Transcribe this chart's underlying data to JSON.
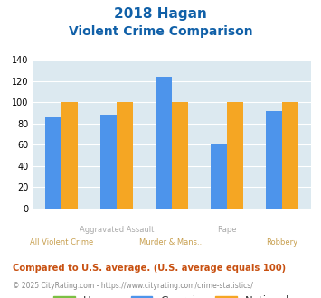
{
  "title_line1": "2018 Hagan",
  "title_line2": "Violent Crime Comparison",
  "categories": [
    "All Violent Crime",
    "Aggravated Assault",
    "Murder & Mans...",
    "Rape",
    "Robbery"
  ],
  "x_labels_row1": [
    "",
    "Aggravated Assault",
    "",
    "Rape",
    ""
  ],
  "x_labels_row2": [
    "All Violent Crime",
    "",
    "Murder & Mans...",
    "",
    "Robbery"
  ],
  "hagan": [
    0,
    0,
    0,
    0,
    0
  ],
  "georgia": [
    86,
    88,
    124,
    60,
    92
  ],
  "national": [
    100,
    100,
    100,
    100,
    100
  ],
  "hagan_color": "#7bc043",
  "georgia_color": "#4d94eb",
  "national_color": "#f5a623",
  "bg_color": "#dce9f0",
  "ylim": [
    0,
    140
  ],
  "yticks": [
    0,
    20,
    40,
    60,
    80,
    100,
    120,
    140
  ],
  "title_color": "#1060a8",
  "subtitle_color": "#1060a8",
  "xlabel_color_row1": "#aaaaaa",
  "xlabel_color_row2": "#c8a050",
  "legend_label_color": "#333333",
  "footnote1": "Compared to U.S. average. (U.S. average equals 100)",
  "footnote2": "© 2025 CityRating.com - https://www.cityrating.com/crime-statistics/",
  "footnote1_color": "#c85010",
  "footnote2_color": "#888888"
}
